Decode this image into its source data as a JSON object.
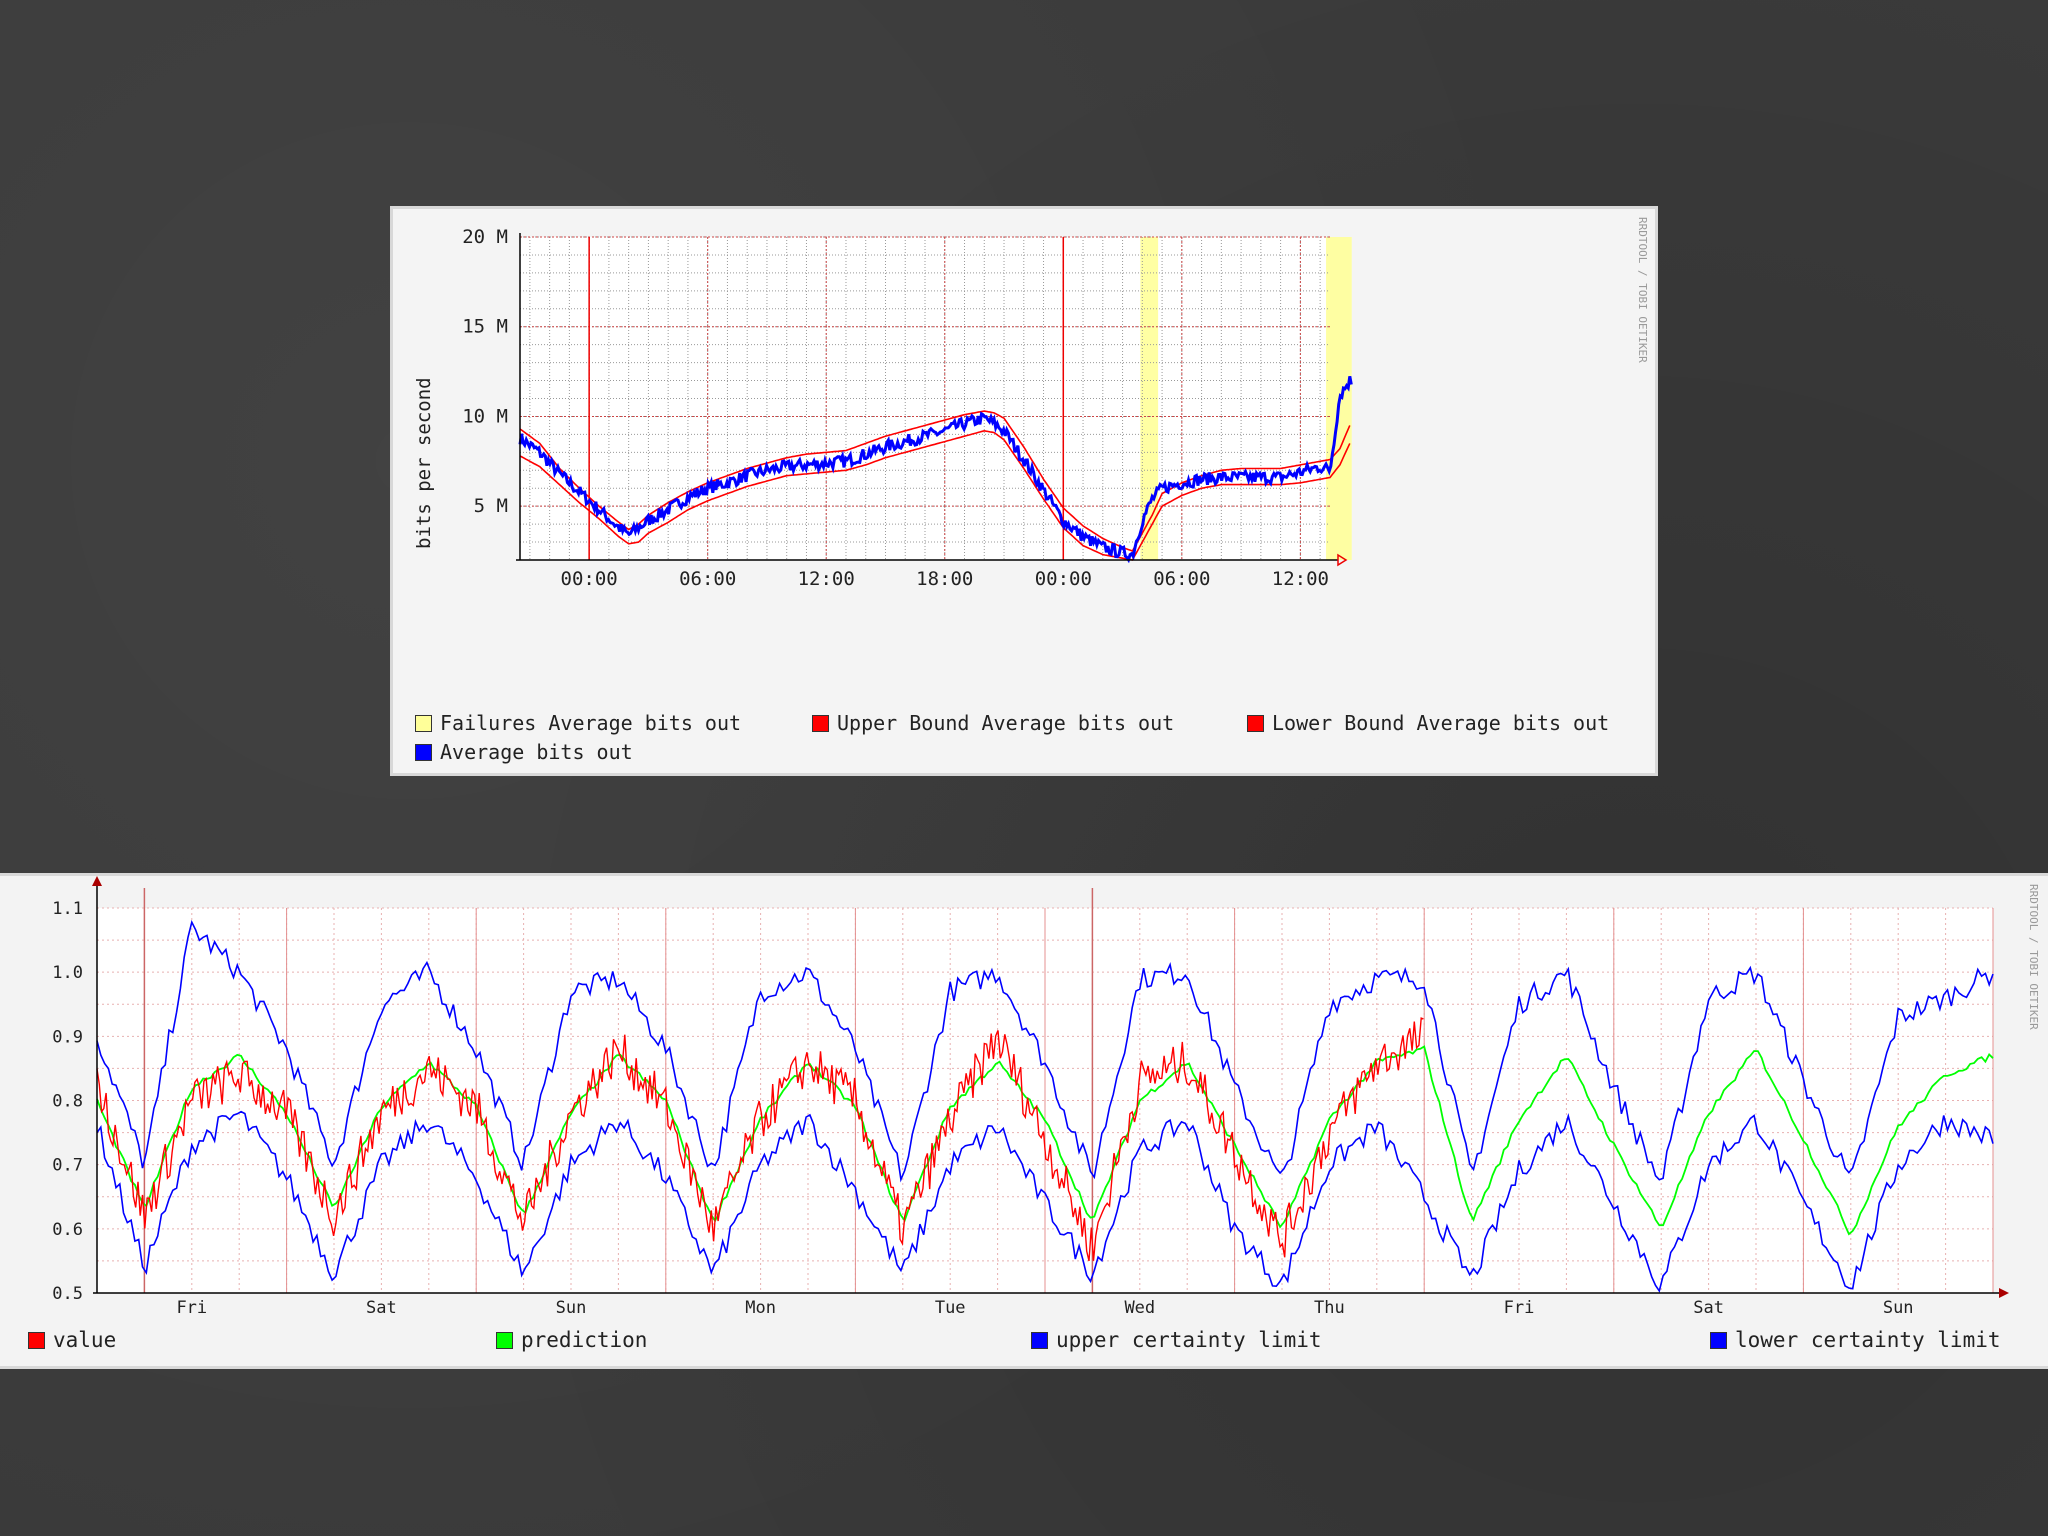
{
  "chart_data": [
    {
      "type": "line",
      "ylabel": "bits per second",
      "ylim": [
        2000000,
        20000000
      ],
      "y_ticks": [
        {
          "value": 5000000,
          "label": "5 M"
        },
        {
          "value": 10000000,
          "label": "10 M"
        },
        {
          "value": 15000000,
          "label": "15 M"
        },
        {
          "value": 20000000,
          "label": "20 M"
        }
      ],
      "x_range_hours": [
        -3.5,
        37.5
      ],
      "x_ticks": [
        {
          "value": 0,
          "label": "00:00"
        },
        {
          "value": 6,
          "label": "06:00"
        },
        {
          "value": 12,
          "label": "12:00"
        },
        {
          "value": 18,
          "label": "18:00"
        },
        {
          "value": 24,
          "label": "00:00"
        },
        {
          "value": 30,
          "label": "06:00"
        },
        {
          "value": 36,
          "label": "12:00"
        }
      ],
      "midnight_lines": [
        0,
        24
      ],
      "failure_bands": [
        [
          27.9,
          28.8
        ],
        [
          37.3,
          38.6
        ]
      ],
      "grid": true,
      "watermark": "RRDTOOL / TOBI OETIKER",
      "legend": [
        {
          "label": "Failures Average bits out",
          "color": "#ffff99"
        },
        {
          "label": "Upper Bound Average bits out",
          "color": "#ff0000"
        },
        {
          "label": "Lower Bound Average bits out",
          "color": "#ff0000"
        },
        {
          "label": "Average bits out",
          "color": "#0000ff"
        }
      ],
      "series": [
        {
          "name": "Average bits out",
          "color": "#0000ff",
          "x": [
            -3.5,
            -2.5,
            -1.5,
            -0.5,
            0.5,
            1.5,
            2.0,
            2.5,
            3,
            4,
            5,
            6,
            7,
            8,
            9,
            10,
            11,
            12,
            13,
            14,
            15,
            16,
            17,
            18,
            19,
            20,
            20.5,
            21,
            22,
            23,
            24,
            25,
            26,
            27,
            27.5,
            28,
            28.5,
            29,
            30,
            31,
            32,
            33,
            34,
            35,
            36,
            37,
            37.5,
            38,
            38.5,
            39,
            39.5,
            40
          ],
          "y": [
            8800000,
            8000000,
            6800000,
            5800000,
            4800000,
            3800000,
            3400000,
            3800000,
            4200000,
            4800000,
            5500000,
            6000000,
            6300000,
            6700000,
            7000000,
            7200000,
            7300000,
            7400000,
            7500000,
            7900000,
            8300000,
            8600000,
            8900000,
            9200000,
            9600000,
            9900000,
            9600000,
            9200000,
            7600000,
            5900000,
            4200000,
            3300000,
            2700000,
            2400000,
            2300000,
            4200000,
            5400000,
            6000000,
            6300000,
            6500000,
            6600000,
            6600000,
            6600000,
            6600000,
            6900000,
            7200000,
            7000000,
            11200000,
            12000000,
            11600000,
            11300000,
            11200000
          ]
        },
        {
          "name": "Upper Bound Average bits out",
          "color": "#ff0000",
          "x": [
            -3.5,
            -2.5,
            -1.5,
            -0.5,
            0.5,
            1.5,
            2.0,
            2.5,
            3,
            4,
            5,
            6,
            7,
            8,
            9,
            10,
            11,
            12,
            13,
            14,
            15,
            16,
            17,
            18,
            19,
            20,
            20.5,
            21,
            22,
            23,
            24,
            25,
            26,
            27,
            27.5,
            28,
            28.5,
            29,
            30,
            31,
            32,
            33,
            34,
            35,
            36,
            37,
            37.5,
            38,
            38.5,
            39,
            39.5,
            40
          ],
          "y": [
            9300000,
            8500000,
            7100000,
            6000000,
            5000000,
            4100000,
            3700000,
            4000000,
            4500000,
            5200000,
            5800000,
            6300000,
            6700000,
            7100000,
            7400000,
            7700000,
            7900000,
            8000000,
            8100000,
            8500000,
            8900000,
            9200000,
            9500000,
            9800000,
            10100000,
            10300000,
            10200000,
            9900000,
            8300000,
            6500000,
            4900000,
            3900000,
            3200000,
            2700000,
            2500000,
            3500000,
            4500000,
            5700000,
            6300000,
            6700000,
            7000000,
            7100000,
            7100000,
            7100000,
            7300000,
            7500000,
            7600000,
            8200000,
            9500000,
            10800000,
            11200000,
            11300000
          ]
        },
        {
          "name": "Lower Bound Average bits out",
          "color": "#ff0000",
          "x": [
            -3.5,
            -2.5,
            -1.5,
            -0.5,
            0.5,
            1.5,
            2.0,
            2.5,
            3,
            4,
            5,
            6,
            7,
            8,
            9,
            10,
            11,
            12,
            13,
            14,
            15,
            16,
            17,
            18,
            19,
            20,
            20.5,
            21,
            22,
            23,
            24,
            25,
            26,
            27,
            27.5,
            28,
            28.5,
            29,
            30,
            31,
            32,
            33,
            34,
            35,
            36,
            37,
            37.5,
            38,
            38.5,
            39,
            39.5,
            40
          ],
          "y": [
            7800000,
            7200000,
            6200000,
            5200000,
            4300000,
            3300000,
            2900000,
            3000000,
            3500000,
            4100000,
            4800000,
            5300000,
            5700000,
            6100000,
            6400000,
            6700000,
            6800000,
            6900000,
            7000000,
            7300000,
            7700000,
            8000000,
            8300000,
            8600000,
            8900000,
            9200000,
            9100000,
            8700000,
            7100000,
            5400000,
            3800000,
            2800000,
            2300000,
            2100000,
            2000000,
            3000000,
            4000000,
            5000000,
            5600000,
            6000000,
            6200000,
            6200000,
            6200000,
            6200000,
            6300000,
            6500000,
            6600000,
            7300000,
            8500000,
            9600000,
            10100000,
            10200000
          ]
        }
      ]
    },
    {
      "type": "line",
      "ylim": [
        0.5,
        1.1
      ],
      "y_ticks": [
        {
          "value": 0.5,
          "label": "0.5"
        },
        {
          "value": 0.6,
          "label": "0.6"
        },
        {
          "value": 0.7,
          "label": "0.7"
        },
        {
          "value": 0.8,
          "label": "0.8"
        },
        {
          "value": 0.9,
          "label": "0.9"
        },
        {
          "value": 1.0,
          "label": "1.0"
        },
        {
          "value": 1.1,
          "label": "1.1"
        }
      ],
      "x_range_days": [
        0,
        10
      ],
      "x_ticks": [
        {
          "value": 0.5,
          "label": "Fri"
        },
        {
          "value": 1.5,
          "label": "Sat"
        },
        {
          "value": 2.5,
          "label": "Sun"
        },
        {
          "value": 3.5,
          "label": "Mon"
        },
        {
          "value": 4.5,
          "label": "Tue"
        },
        {
          "value": 5.5,
          "label": "Wed"
        },
        {
          "value": 6.5,
          "label": "Thu"
        },
        {
          "value": 7.5,
          "label": "Fri"
        },
        {
          "value": 8.5,
          "label": "Sat"
        },
        {
          "value": 9.5,
          "label": "Sun"
        }
      ],
      "marker_lines": [
        0.25,
        5.25
      ],
      "grid": true,
      "watermark": "RRDTOOL / TOBI OETIKER",
      "legend": [
        {
          "label": "value",
          "color": "#ff0000"
        },
        {
          "label": "prediction",
          "color": "#00ff00"
        },
        {
          "label": "upper certainty limit",
          "color": "#0000ff"
        },
        {
          "label": "lower certainty limit",
          "color": "#0000ff"
        }
      ],
      "series": [
        {
          "name": "value",
          "color": "#ff0000",
          "x": [
            0.0,
            0.25,
            0.5,
            0.75,
            1.0,
            1.25,
            1.5,
            1.75,
            2.0,
            2.25,
            2.5,
            2.75,
            3.0,
            3.25,
            3.5,
            3.75,
            4.0,
            4.25,
            4.5,
            4.75,
            5.0,
            5.25,
            5.5,
            5.75,
            6.0,
            6.25,
            6.5,
            6.75,
            7.0
          ],
          "y": [
            0.83,
            0.62,
            0.8,
            0.84,
            0.78,
            0.62,
            0.78,
            0.85,
            0.79,
            0.61,
            0.78,
            0.88,
            0.79,
            0.6,
            0.77,
            0.86,
            0.8,
            0.6,
            0.77,
            0.9,
            0.74,
            0.57,
            0.83,
            0.86,
            0.72,
            0.58,
            0.75,
            0.86,
            0.9
          ]
        },
        {
          "name": "prediction",
          "color": "#00ff00",
          "x": [
            0.0,
            0.25,
            0.5,
            0.75,
            1.0,
            1.25,
            1.5,
            1.75,
            2.0,
            2.25,
            2.5,
            2.75,
            3.0,
            3.25,
            3.5,
            3.75,
            4.0,
            4.25,
            4.5,
            4.75,
            5.0,
            5.25,
            5.5,
            5.75,
            6.0,
            6.25,
            6.5,
            6.75,
            7.0,
            7.25,
            7.5,
            7.75,
            8.0,
            8.25,
            8.5,
            8.75,
            9.0,
            9.25,
            9.5,
            9.75,
            10.0
          ],
          "y": [
            0.8,
            0.63,
            0.82,
            0.87,
            0.78,
            0.63,
            0.79,
            0.86,
            0.79,
            0.62,
            0.78,
            0.87,
            0.8,
            0.61,
            0.77,
            0.86,
            0.79,
            0.61,
            0.79,
            0.86,
            0.77,
            0.61,
            0.8,
            0.86,
            0.73,
            0.6,
            0.77,
            0.86,
            0.88,
            0.61,
            0.77,
            0.87,
            0.73,
            0.6,
            0.78,
            0.88,
            0.74,
            0.59,
            0.76,
            0.84,
            0.87
          ]
        },
        {
          "name": "upper certainty limit",
          "color": "#0000ff",
          "x": [
            0.0,
            0.25,
            0.5,
            0.75,
            1.0,
            1.25,
            1.5,
            1.75,
            2.0,
            2.25,
            2.5,
            2.75,
            3.0,
            3.25,
            3.5,
            3.75,
            4.0,
            4.25,
            4.5,
            4.75,
            5.0,
            5.25,
            5.5,
            5.75,
            6.0,
            6.25,
            6.5,
            6.75,
            7.0,
            7.25,
            7.5,
            7.75,
            8.0,
            8.25,
            8.5,
            8.75,
            9.0,
            9.25,
            9.5,
            9.75,
            10.0
          ],
          "y": [
            0.9,
            0.7,
            1.07,
            1.0,
            0.88,
            0.7,
            0.95,
            1.0,
            0.88,
            0.7,
            0.97,
            0.99,
            0.88,
            0.69,
            0.97,
            1.0,
            0.88,
            0.68,
            0.97,
            1.0,
            0.86,
            0.68,
            0.99,
            1.0,
            0.82,
            0.67,
            0.95,
            0.99,
            0.99,
            0.68,
            0.95,
            1.0,
            0.82,
            0.67,
            0.96,
            1.0,
            0.83,
            0.67,
            0.93,
            0.96,
            1.0
          ]
        },
        {
          "name": "lower certainty limit",
          "color": "#0000ff",
          "x": [
            0.0,
            0.25,
            0.5,
            0.75,
            1.0,
            1.25,
            1.5,
            1.75,
            2.0,
            2.25,
            2.5,
            2.75,
            3.0,
            3.25,
            3.5,
            3.75,
            4.0,
            4.25,
            4.5,
            4.75,
            5.0,
            5.25,
            5.5,
            5.75,
            6.0,
            6.25,
            6.5,
            6.75,
            7.0,
            7.25,
            7.5,
            7.75,
            8.0,
            8.25,
            8.5,
            8.75,
            9.0,
            9.25,
            9.5,
            9.75,
            10.0
          ],
          "y": [
            0.76,
            0.54,
            0.73,
            0.78,
            0.68,
            0.53,
            0.7,
            0.77,
            0.68,
            0.53,
            0.7,
            0.77,
            0.68,
            0.53,
            0.7,
            0.77,
            0.66,
            0.53,
            0.7,
            0.76,
            0.64,
            0.53,
            0.72,
            0.77,
            0.6,
            0.51,
            0.7,
            0.76,
            0.65,
            0.52,
            0.69,
            0.77,
            0.64,
            0.51,
            0.7,
            0.77,
            0.64,
            0.51,
            0.7,
            0.77,
            0.74
          ]
        }
      ]
    }
  ]
}
